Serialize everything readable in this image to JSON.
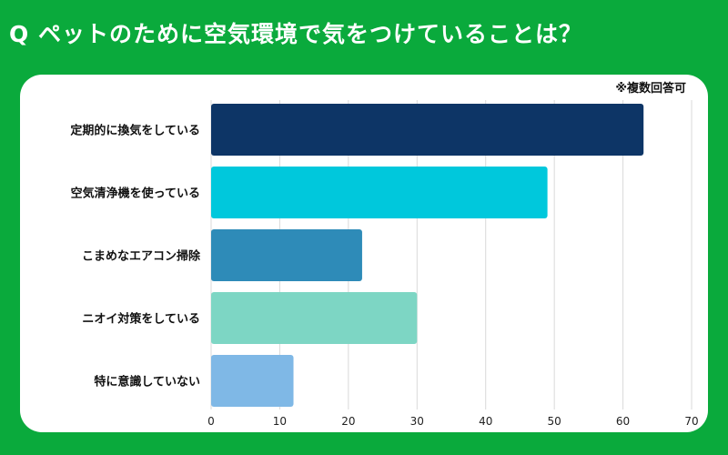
{
  "page": {
    "title": "Q ペットのために空気環境で気をつけていることは？",
    "note": "※複数回答可"
  },
  "chart_data": {
    "type": "bar",
    "orientation": "horizontal",
    "categories": [
      "定期的に換気をしている",
      "空気清浄機を使っている",
      "こまめなエアコン掃除",
      "ニオイ対策をしている",
      "特に意識していない"
    ],
    "values": [
      63,
      49,
      22,
      30,
      12
    ],
    "colors": [
      "#0d3566",
      "#00c8dc",
      "#2e8bb8",
      "#7dd6c4",
      "#7fb8e6"
    ],
    "xlim": [
      0,
      70
    ],
    "xticks": [
      0,
      10,
      20,
      30,
      40,
      50,
      60,
      70
    ],
    "grid": true
  }
}
